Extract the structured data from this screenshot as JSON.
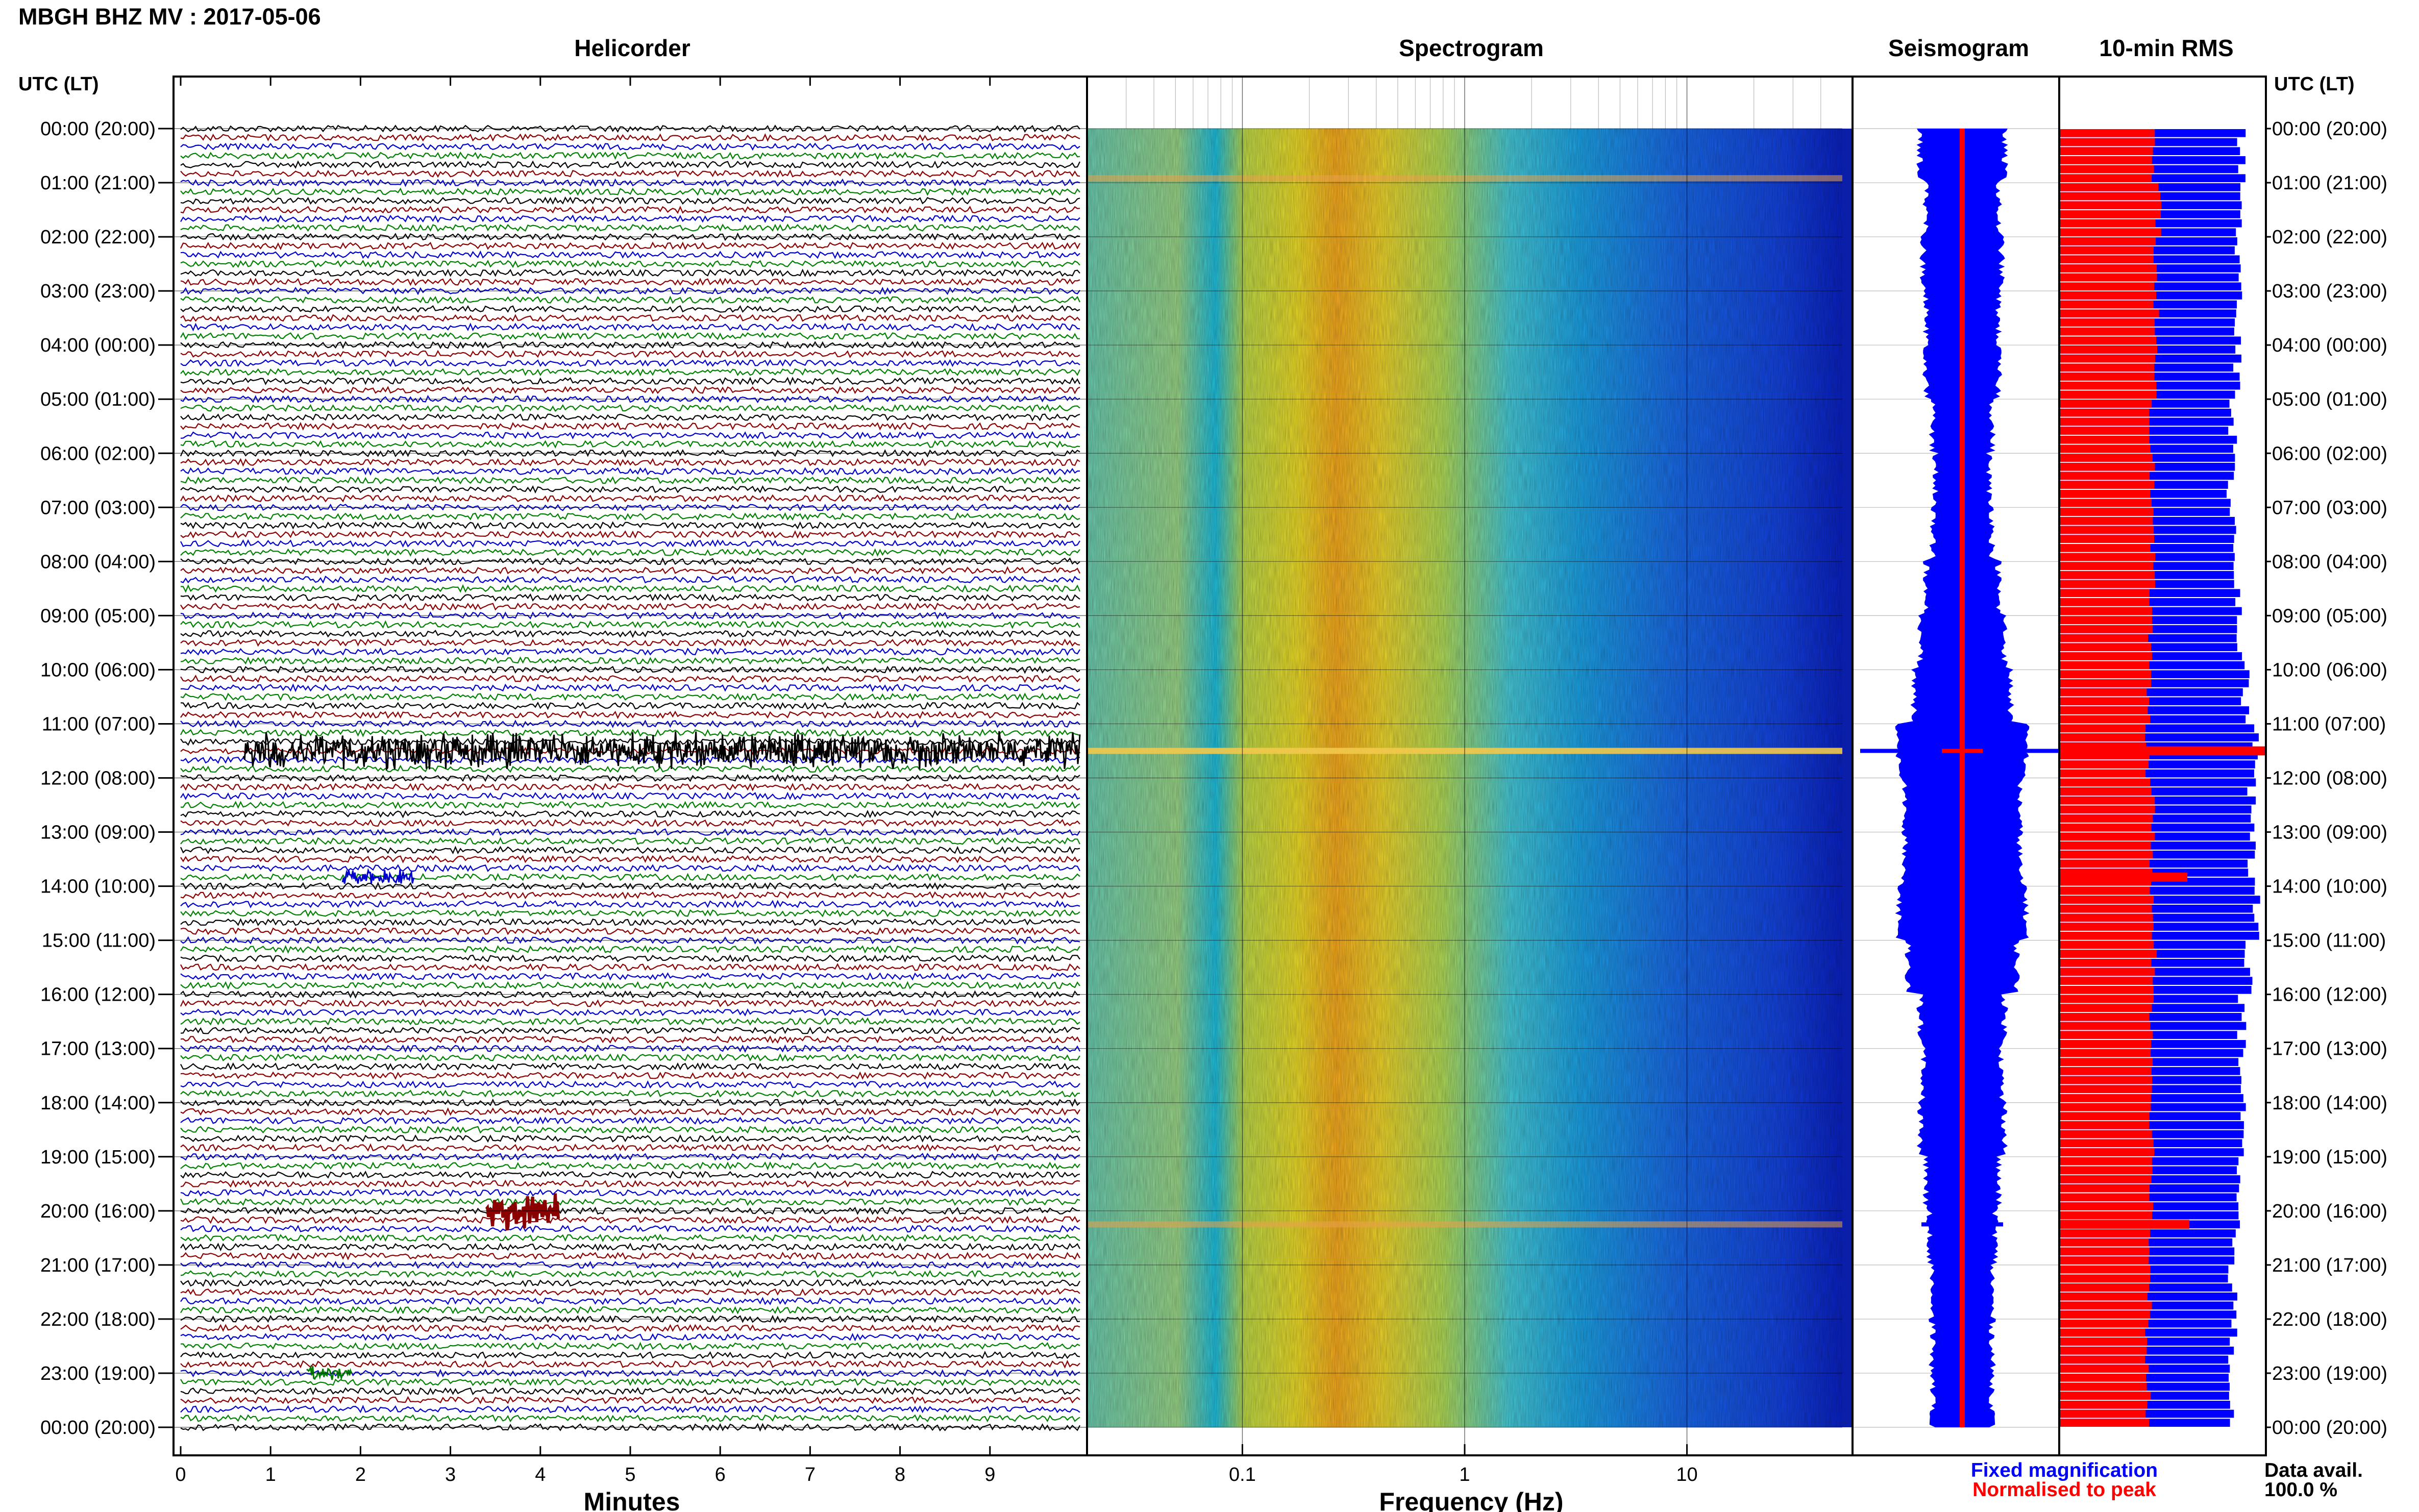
{
  "header": {
    "title": "MBGH BHZ MV : 2017-05-06"
  },
  "panels": {
    "helicorder": "Helicorder",
    "spectrogram": "Spectrogram",
    "seismogram": "Seismogram",
    "rms": "10-min RMS"
  },
  "axis": {
    "time_header_left": "UTC (LT)",
    "time_header_right": "UTC (LT)",
    "minutes_label": "Minutes",
    "frequency_label": "Frequency (Hz)"
  },
  "legend": {
    "fixed": "Fixed magnification",
    "normalised": "Normalised to peak",
    "fixed_color": "#0000ff",
    "normalised_color": "#ff0000"
  },
  "data_avail": {
    "label": "Data avail.",
    "value": "100.0 %"
  },
  "colors": {
    "trace_cycle": [
      "#000000",
      "#8b0000",
      "#0000cd",
      "#008000"
    ],
    "rms_fixed": "#0000ff",
    "rms_normalised": "#ff0000"
  },
  "chart_data": [
    {
      "type": "line",
      "name": "Helicorder",
      "xlabel": "Minutes",
      "xlim": [
        0,
        10
      ],
      "x_ticks": [
        "0",
        "1",
        "2",
        "3",
        "4",
        "5",
        "6",
        "7",
        "8",
        "9"
      ],
      "y_ticks": [
        "00:00 (20:00)",
        "01:00 (21:00)",
        "02:00 (22:00)",
        "03:00 (23:00)",
        "04:00 (00:00)",
        "05:00 (01:00)",
        "06:00 (02:00)",
        "07:00 (03:00)",
        "08:00 (04:00)",
        "09:00 (05:00)",
        "10:00 (06:00)",
        "11:00 (07:00)",
        "12:00 (08:00)",
        "13:00 (09:00)",
        "14:00 (10:00)",
        "15:00 (11:00)",
        "16:00 (12:00)",
        "17:00 (13:00)",
        "18:00 (14:00)",
        "19:00 (15:00)",
        "20:00 (16:00)",
        "21:00 (17:00)",
        "22:00 (18:00)",
        "23:00 (19:00)",
        "00:00 (20:00)"
      ],
      "line_minutes": 10,
      "events": [
        {
          "time": "11:30",
          "minute_start": 0.7,
          "minute_end": 10,
          "amplitude": "large"
        },
        {
          "time": "13:50",
          "minute_start": 1.8,
          "minute_end": 2.6,
          "amplitude": "small"
        },
        {
          "time": "20:00",
          "minute_start": 3.4,
          "minute_end": 4.2,
          "amplitude": "large"
        },
        {
          "time": "23:00",
          "minute_start": 1.4,
          "minute_end": 1.9,
          "amplitude": "small"
        }
      ]
    },
    {
      "type": "heatmap",
      "name": "Spectrogram",
      "xlabel": "Frequency (Hz)",
      "xscale": "log",
      "xlim": [
        0.02,
        50
      ],
      "x_ticks": [
        "0.1",
        "1",
        "10"
      ],
      "ylim": [
        "00:00",
        "24:00"
      ],
      "peak_band_hz": [
        0.2,
        0.5
      ],
      "bright_rows": [
        "00:55",
        "11:30",
        "20:15"
      ]
    },
    {
      "type": "area",
      "name": "Seismogram",
      "ylim": [
        "00:00",
        "24:00"
      ],
      "series": [
        {
          "name": "Fixed magnification",
          "color": "#0000ff",
          "spike_times": [
            "11:30",
            "13:50",
            "20:15"
          ]
        },
        {
          "name": "Normalised to peak",
          "color": "#ff0000",
          "spike_times": [
            "11:30"
          ]
        }
      ]
    },
    {
      "type": "bar",
      "name": "10-min RMS",
      "ylim": [
        "00:00",
        "24:00"
      ],
      "bins_per_hour": 6,
      "series": [
        {
          "name": "Fixed magnification",
          "color": "#0000ff",
          "relative_level": [
            0.88,
            0.86,
            0.87,
            0.86,
            0.86,
            0.84,
            0.83,
            0.84,
            0.86,
            0.88,
            0.9,
            0.95,
            0.93,
            0.93,
            0.95,
            0.92,
            0.88,
            0.87,
            0.88,
            0.86,
            0.85,
            0.84,
            0.84,
            0.84
          ]
        },
        {
          "name": "Normalised to peak",
          "color": "#ff0000",
          "relative_level": [
            0.46,
            0.48,
            0.46,
            0.47,
            0.47,
            0.45,
            0.45,
            0.45,
            0.45,
            0.44,
            0.43,
            0.43,
            0.45,
            0.45,
            0.45,
            0.46,
            0.45,
            0.45,
            0.45,
            0.45,
            0.44,
            0.44,
            0.43,
            0.43
          ]
        }
      ],
      "spikes": [
        {
          "time": "11:30",
          "series": "Normalised to peak",
          "relative_level": 1.0
        },
        {
          "time": "13:50",
          "series": "Normalised to peak",
          "relative_level": 0.62
        },
        {
          "time": "20:15",
          "series": "Normalised to peak",
          "relative_level": 0.63
        }
      ]
    }
  ]
}
